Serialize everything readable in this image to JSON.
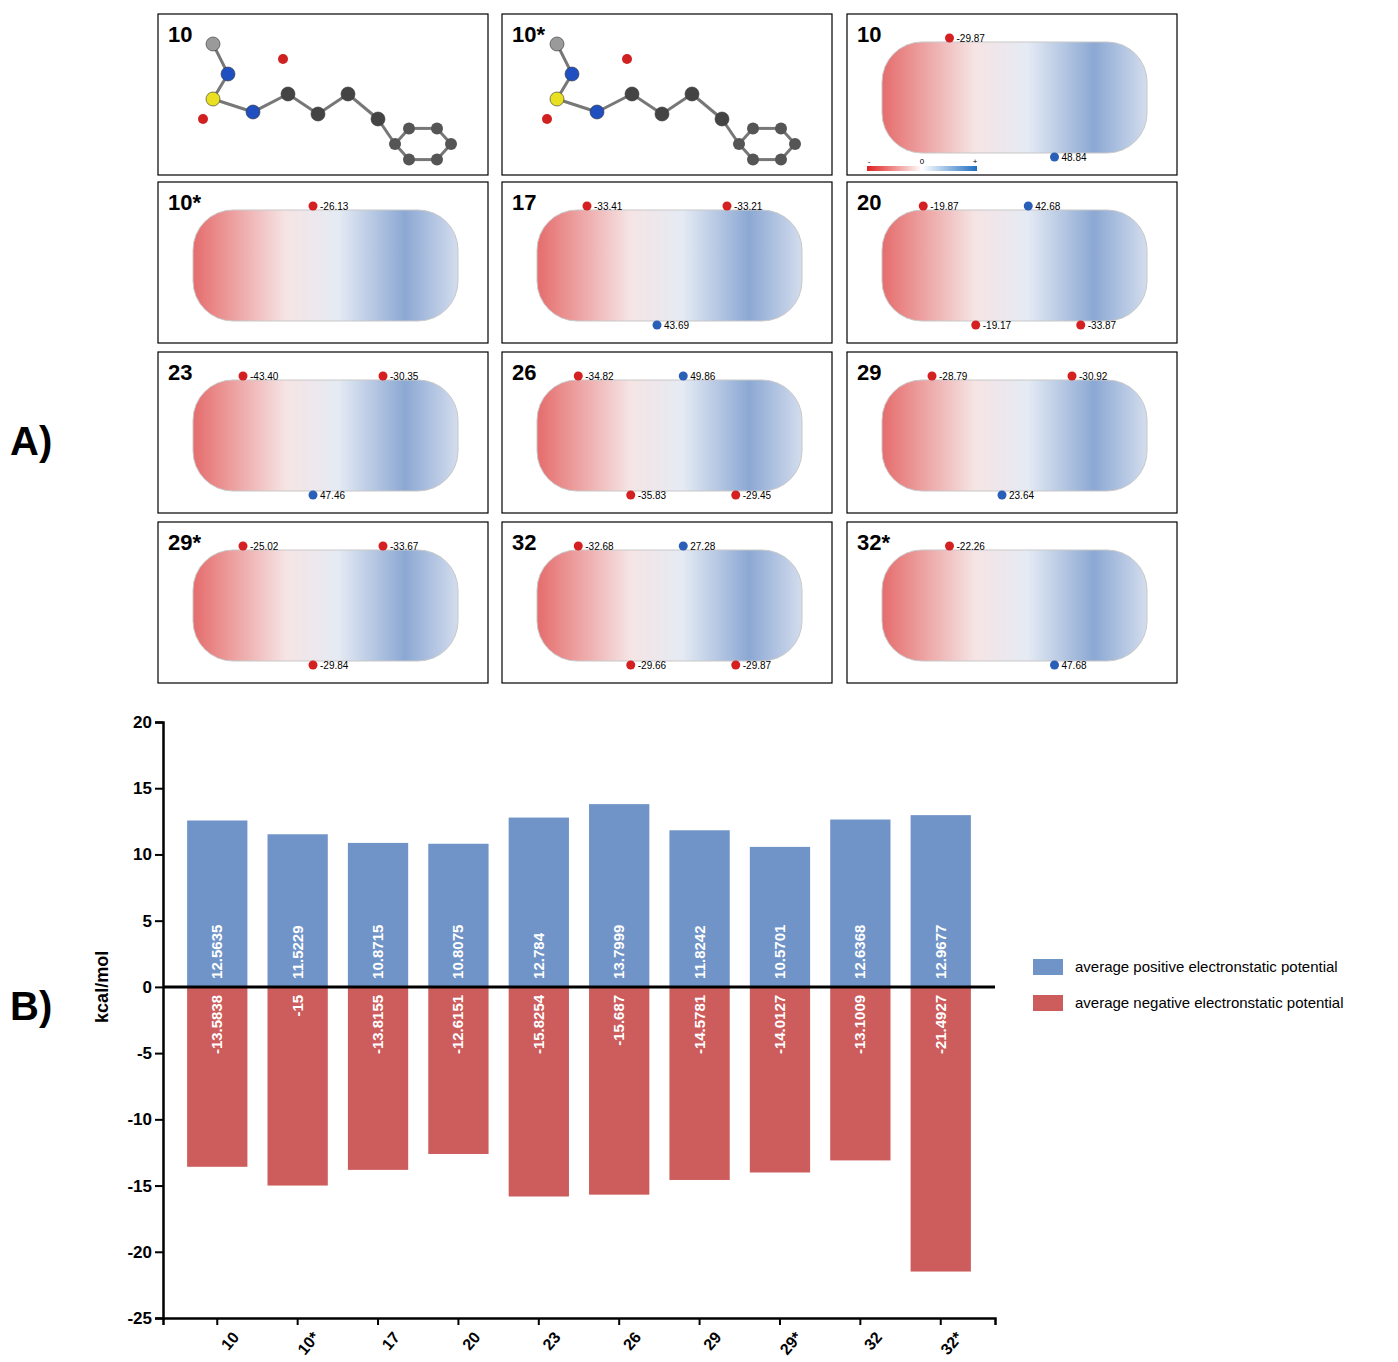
{
  "figure": {
    "panel_a_label": "A)",
    "panel_b_label": "B)",
    "structures": [
      {
        "label": "10"
      },
      {
        "label": "10*"
      }
    ],
    "esp_scale_labels": [
      "-",
      "0",
      "+"
    ],
    "esp_maps": [
      {
        "label": "10",
        "extrema": [
          -29.87,
          48.84
        ]
      },
      {
        "label": "10*",
        "extrema": [
          -26.13
        ]
      },
      {
        "label": "17",
        "extrema": [
          -33.41,
          43.69,
          -33.21
        ]
      },
      {
        "label": "20",
        "extrema": [
          -19.87,
          -19.17,
          42.68,
          -33.87
        ]
      },
      {
        "label": "23",
        "extrema": [
          -43.4,
          47.46,
          -30.35
        ]
      },
      {
        "label": "26",
        "extrema": [
          -34.82,
          -35.83,
          49.86,
          -29.45
        ]
      },
      {
        "label": "29",
        "extrema": [
          -28.79,
          23.64,
          -30.92
        ]
      },
      {
        "label": "29*",
        "extrema": [
          -25.02,
          -29.84,
          -33.67
        ]
      },
      {
        "label": "32",
        "extrema": [
          -32.68,
          -29.66,
          27.28,
          -29.87
        ]
      },
      {
        "label": "32*",
        "extrema": [
          -22.26,
          47.68
        ]
      }
    ]
  },
  "chart_data": {
    "type": "bar",
    "categories": [
      "10",
      "10*",
      "17",
      "20",
      "23",
      "26",
      "29",
      "29*",
      "32",
      "32*"
    ],
    "series": [
      {
        "name": "average positive electronstatic potential",
        "color": "#7094c8",
        "values": [
          12.5635,
          11.5229,
          10.8715,
          10.8075,
          12.784,
          13.7999,
          11.8242,
          10.5701,
          12.6368,
          12.9677
        ]
      },
      {
        "name": "average negative electronstatic potential",
        "color": "#cd5c5c",
        "values": [
          -13.5838,
          -15.0,
          -13.8155,
          -12.6151,
          -15.8254,
          -15.687,
          -14.5781,
          -14.0127,
          -13.1009,
          -21.4927
        ]
      }
    ],
    "ylabel": "kcal/mol",
    "ylim": [
      -25,
      20
    ],
    "yticks": [
      -25,
      -20,
      -15,
      -10,
      -5,
      0,
      5,
      10,
      15,
      20
    ],
    "data_labels": true,
    "legend": "right"
  }
}
